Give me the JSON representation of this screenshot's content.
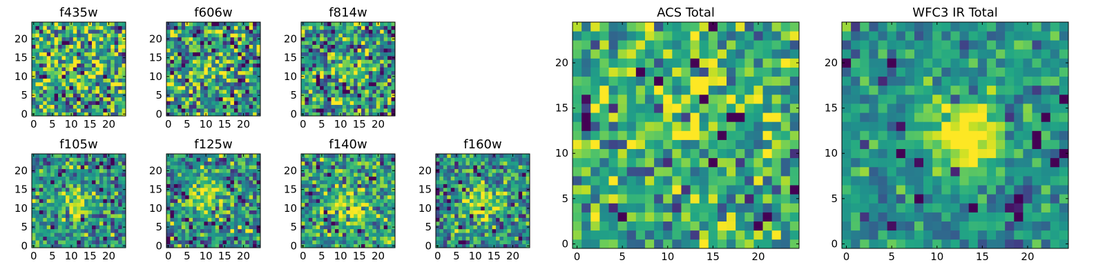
{
  "figure": {
    "description_colormap": "viridis",
    "panels": [
      {
        "id": "f435w",
        "title": "f435w",
        "grid_size": 25,
        "seed": 11,
        "center": [
          12,
          12
        ],
        "center_strength": 0.05,
        "noise": 1.0,
        "level": 0.62,
        "xticks": [
          "0",
          "5",
          "10",
          "15",
          "20"
        ],
        "yticks": [
          "0",
          "5",
          "10",
          "15",
          "20"
        ]
      },
      {
        "id": "f606w",
        "title": "f606w",
        "grid_size": 25,
        "seed": 23,
        "center": [
          12,
          12
        ],
        "center_strength": 0.25,
        "noise": 1.0,
        "level": 0.55,
        "xticks": [
          "0",
          "5",
          "10",
          "15",
          "20"
        ],
        "yticks": [
          "0",
          "5",
          "10",
          "15",
          "20"
        ]
      },
      {
        "id": "f814w",
        "title": "f814w",
        "grid_size": 25,
        "seed": 37,
        "center": [
          12,
          12
        ],
        "center_strength": 0.15,
        "noise": 1.0,
        "level": 0.55,
        "xticks": [
          "0",
          "5",
          "10",
          "15",
          "20"
        ],
        "yticks": [
          "0",
          "5",
          "10",
          "15",
          "20"
        ]
      },
      {
        "id": "f105w",
        "title": "f105w",
        "grid_size": 25,
        "seed": 41,
        "center": [
          12,
          12
        ],
        "center_strength": 0.45,
        "noise": 0.8,
        "level": 0.5,
        "xticks": [
          "0",
          "5",
          "10",
          "15",
          "20"
        ],
        "yticks": [
          "0",
          "5",
          "10",
          "15",
          "20"
        ]
      },
      {
        "id": "f125w",
        "title": "f125w",
        "grid_size": 25,
        "seed": 53,
        "center": [
          10,
          14
        ],
        "center_strength": 0.45,
        "noise": 0.8,
        "level": 0.5,
        "xticks": [
          "0",
          "5",
          "10",
          "15",
          "20"
        ],
        "yticks": [
          "0",
          "5",
          "10",
          "15",
          "20"
        ]
      },
      {
        "id": "f140w",
        "title": "f140w",
        "grid_size": 25,
        "seed": 67,
        "center": [
          13,
          10
        ],
        "center_strength": 0.45,
        "noise": 0.8,
        "level": 0.55,
        "xticks": [
          "0",
          "5",
          "10",
          "15",
          "20"
        ],
        "yticks": [
          "0",
          "5",
          "10",
          "15",
          "20"
        ]
      },
      {
        "id": "f160w",
        "title": "f160w",
        "grid_size": 25,
        "seed": 79,
        "center": [
          12,
          12
        ],
        "center_strength": 0.5,
        "noise": 0.8,
        "level": 0.5,
        "xticks": [
          "0",
          "5",
          "10",
          "15",
          "20"
        ],
        "yticks": [
          "0",
          "5",
          "10",
          "15",
          "20"
        ]
      },
      {
        "id": "acs_total",
        "title": "ACS Total",
        "grid_size": 25,
        "seed": 97,
        "center": [
          12,
          14
        ],
        "center_strength": 0.3,
        "noise": 0.8,
        "level": 0.62,
        "xticks": [
          "0",
          "5",
          "10",
          "15",
          "20"
        ],
        "yticks": [
          "0",
          "5",
          "10",
          "15",
          "20"
        ]
      },
      {
        "id": "wfc3_ir_total",
        "title": "WFC3 IR Total",
        "grid_size": 25,
        "seed": 113,
        "center": [
          13,
          12
        ],
        "center_strength": 0.6,
        "noise": 0.5,
        "level": 0.5,
        "xticks": [
          "0",
          "5",
          "10",
          "15",
          "20"
        ],
        "yticks": [
          "0",
          "5",
          "10",
          "15",
          "20"
        ]
      }
    ]
  },
  "chart_data": [
    {
      "type": "heatmap",
      "title": "f435w",
      "x_range": [
        0,
        24
      ],
      "y_range": [
        0,
        24
      ],
      "xticks": [
        0,
        5,
        10,
        15,
        20
      ],
      "yticks": [
        0,
        5,
        10,
        15,
        20
      ],
      "colormap": "viridis"
    },
    {
      "type": "heatmap",
      "title": "f606w",
      "x_range": [
        0,
        24
      ],
      "y_range": [
        0,
        24
      ],
      "xticks": [
        0,
        5,
        10,
        15,
        20
      ],
      "yticks": [
        0,
        5,
        10,
        15,
        20
      ],
      "colormap": "viridis"
    },
    {
      "type": "heatmap",
      "title": "f814w",
      "x_range": [
        0,
        24
      ],
      "y_range": [
        0,
        24
      ],
      "xticks": [
        0,
        5,
        10,
        15,
        20
      ],
      "yticks": [
        0,
        5,
        10,
        15,
        20
      ],
      "colormap": "viridis"
    },
    {
      "type": "heatmap",
      "title": "f105w",
      "x_range": [
        0,
        24
      ],
      "y_range": [
        0,
        24
      ],
      "xticks": [
        0,
        5,
        10,
        15,
        20
      ],
      "yticks": [
        0,
        5,
        10,
        15,
        20
      ],
      "colormap": "viridis"
    },
    {
      "type": "heatmap",
      "title": "f125w",
      "x_range": [
        0,
        24
      ],
      "y_range": [
        0,
        24
      ],
      "xticks": [
        0,
        5,
        10,
        15,
        20
      ],
      "yticks": [
        0,
        5,
        10,
        15,
        20
      ],
      "colormap": "viridis"
    },
    {
      "type": "heatmap",
      "title": "f140w",
      "x_range": [
        0,
        24
      ],
      "y_range": [
        0,
        24
      ],
      "xticks": [
        0,
        5,
        10,
        15,
        20
      ],
      "yticks": [
        0,
        5,
        10,
        15,
        20
      ],
      "colormap": "viridis"
    },
    {
      "type": "heatmap",
      "title": "f160w",
      "x_range": [
        0,
        24
      ],
      "y_range": [
        0,
        24
      ],
      "xticks": [
        0,
        5,
        10,
        15,
        20
      ],
      "yticks": [
        0,
        5,
        10,
        15,
        20
      ],
      "colormap": "viridis"
    },
    {
      "type": "heatmap",
      "title": "ACS Total",
      "x_range": [
        0,
        24
      ],
      "y_range": [
        0,
        24
      ],
      "xticks": [
        0,
        5,
        10,
        15,
        20
      ],
      "yticks": [
        0,
        5,
        10,
        15,
        20
      ],
      "colormap": "viridis"
    },
    {
      "type": "heatmap",
      "title": "WFC3 IR Total",
      "x_range": [
        0,
        24
      ],
      "y_range": [
        0,
        24
      ],
      "xticks": [
        0,
        5,
        10,
        15,
        20
      ],
      "yticks": [
        0,
        5,
        10,
        15,
        20
      ],
      "colormap": "viridis"
    }
  ]
}
